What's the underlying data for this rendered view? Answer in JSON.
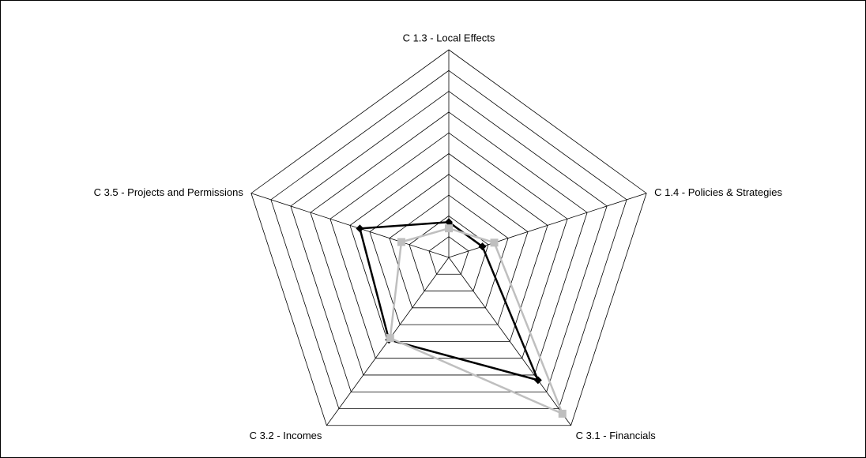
{
  "chart_data": {
    "type": "radar",
    "categories": [
      "C 1.3 - Local Effects",
      "C 1.4 - Policies & Strategies",
      "C 3.1 - Financials",
      "C 3.2 - Incomes",
      "C 3.5 - Projects and Permissions"
    ],
    "ylim": [
      0,
      10
    ],
    "yticks": [
      0,
      1,
      2,
      3,
      4,
      5,
      6,
      7,
      8,
      9,
      10
    ],
    "grid": true,
    "series": [
      {
        "color": "#000000",
        "marker": "diamond",
        "values": [
          1.7,
          1.7,
          7.3,
          4.9,
          4.5
        ]
      },
      {
        "color": "#bfbfbf",
        "marker": "square",
        "values": [
          1.4,
          2.3,
          9.3,
          4.8,
          2.4
        ]
      }
    ]
  }
}
